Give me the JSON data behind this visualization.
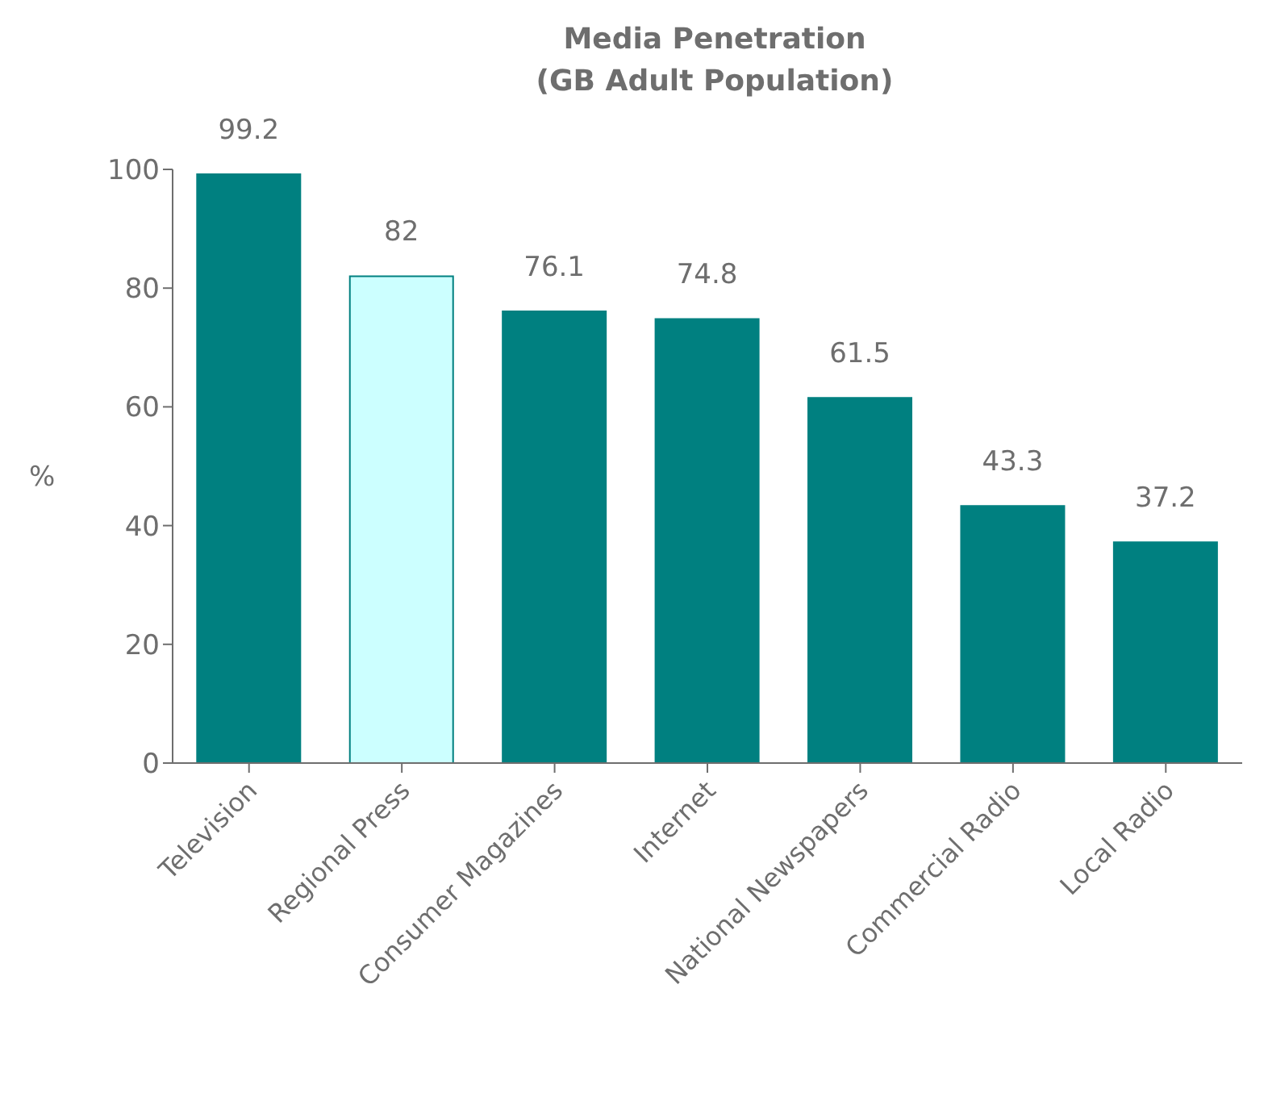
{
  "chart_data": {
    "type": "bar",
    "title": "Media Penetration\n(GB Adult Population)",
    "ylabel": "%",
    "categories": [
      "Television",
      "Regional Press",
      "Consumer Magazines",
      "Internet",
      "National Newspapers",
      "Commercial Radio",
      "Local Radio"
    ],
    "values": [
      99.2,
      82,
      76.1,
      74.8,
      61.5,
      43.3,
      37.2
    ],
    "colors": [
      "#008080",
      "#ccffff",
      "#008080",
      "#008080",
      "#008080",
      "#008080",
      "#008080"
    ],
    "ylim": [
      0,
      100
    ],
    "yticks": [
      0,
      20,
      40,
      60,
      80,
      100
    ],
    "data_labels": true,
    "grid": false
  }
}
